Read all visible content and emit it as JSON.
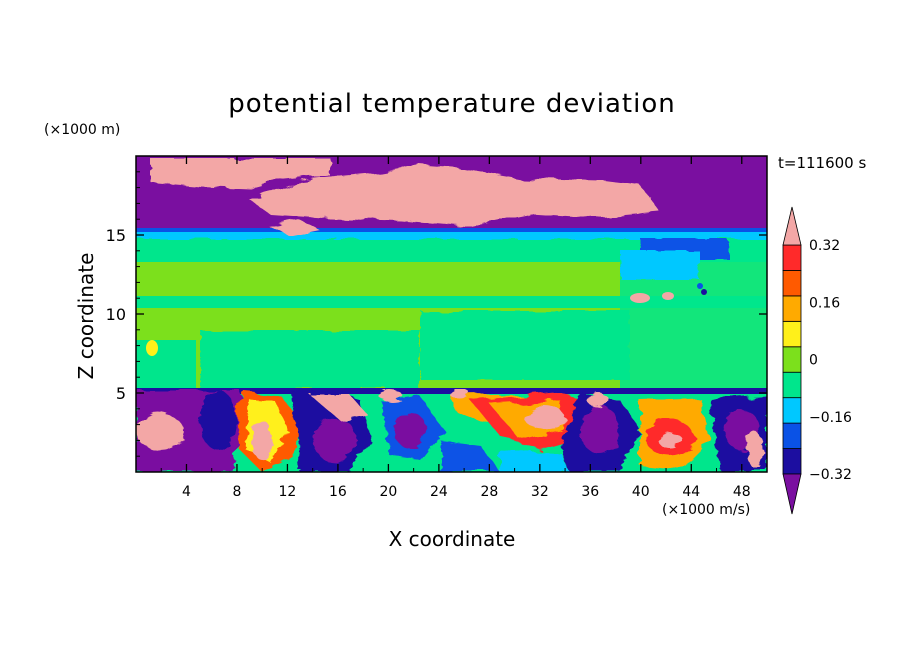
{
  "chart_data": {
    "type": "heatmap",
    "title": "potential temperature deviation",
    "xlabel": "X coordinate",
    "ylabel": "Z coordinate",
    "x_unit_label": "(×1000 m/s)",
    "y_unit_label": "(×1000 m)",
    "time_label": "t=111600 s",
    "xlim": [
      0,
      50
    ],
    "ylim": [
      0,
      20
    ],
    "x_ticks": [
      4,
      8,
      12,
      16,
      20,
      24,
      28,
      32,
      36,
      40,
      44,
      48
    ],
    "y_ticks": [
      5,
      10,
      15
    ],
    "colorbar": {
      "levels": [
        -0.4,
        -0.32,
        -0.24,
        -0.16,
        -0.08,
        0,
        0.08,
        0.16,
        0.24,
        0.32,
        0.4
      ],
      "labeled_levels": [
        -0.32,
        -0.16,
        0,
        0.16,
        0.32
      ],
      "colors": [
        "#7a0fa0",
        "#1c0ea0",
        "#0a52e6",
        "#00c8ff",
        "#00e68c",
        "#7ce01c",
        "#fff01a",
        "#ffaa00",
        "#ff5a00",
        "#ff2a2a",
        "#f3a7a6"
      ],
      "extend": "both"
    },
    "field_description": {
      "upper_stratosphere_z_15_to_20": "mostly < -0.32 (purple) with > 0.32 (pink) patches",
      "middle_z_5_to_15": "roughly 0 to 0.08 (green)",
      "lower_z_0_to_5": "turbulent eddies spanning full range"
    }
  }
}
